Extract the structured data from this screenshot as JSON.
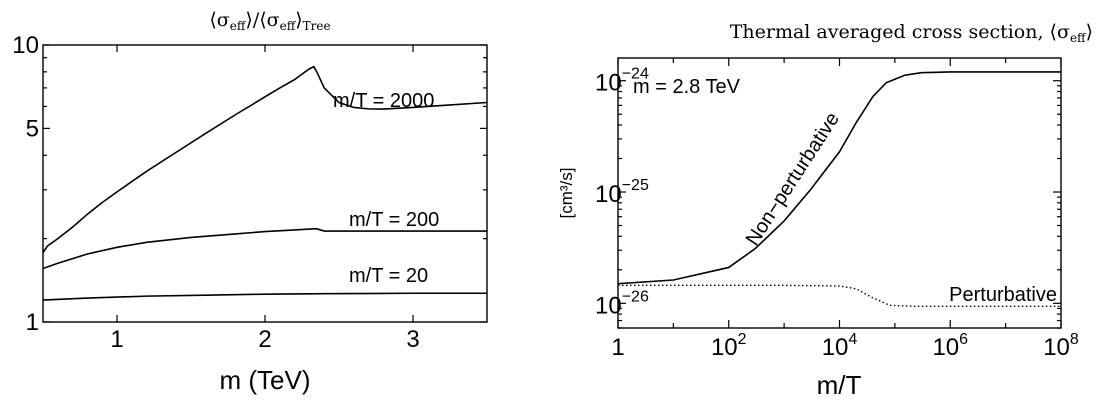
{
  "chart_data": [
    {
      "type": "line",
      "title": {
        "lhs": "⟨σ",
        "lhs_sub": "eff",
        "mid": "⟩/⟨σ",
        "mid_sub": "eff",
        "close": "⟩",
        "tail_sub": "Tree"
      },
      "xlabel": "m (TeV)",
      "ylabel": "",
      "xlim": [
        0.5,
        3.5
      ],
      "ylim": [
        1,
        10
      ],
      "yscale": "log",
      "x_ticks": [
        1,
        2,
        3
      ],
      "x_tick_labels": [
        "1",
        "2",
        "3"
      ],
      "y_ticks": [
        1,
        5,
        10
      ],
      "y_tick_labels": [
        "1",
        "5",
        "10"
      ],
      "series": [
        {
          "name": "m/T = 2000",
          "x": [
            0.5,
            0.53,
            0.6,
            0.7,
            0.8,
            0.9,
            1.0,
            1.2,
            1.4,
            1.6,
            1.8,
            2.0,
            2.1,
            2.2,
            2.25,
            2.3,
            2.33,
            2.35,
            2.4,
            2.5,
            2.6,
            2.7,
            2.8,
            3.0,
            3.2,
            3.5
          ],
          "values": [
            1.78,
            1.88,
            2.0,
            2.2,
            2.45,
            2.7,
            2.95,
            3.5,
            4.1,
            4.8,
            5.6,
            6.5,
            7.0,
            7.5,
            7.85,
            8.2,
            8.35,
            8.0,
            7.0,
            6.2,
            5.95,
            5.88,
            5.87,
            5.95,
            6.05,
            6.2
          ]
        },
        {
          "name": "m/T = 200",
          "x": [
            0.5,
            0.6,
            0.8,
            1.0,
            1.2,
            1.5,
            1.8,
            2.0,
            2.2,
            2.33,
            2.35,
            2.4,
            2.6,
            3.0,
            3.5
          ],
          "values": [
            1.56,
            1.63,
            1.76,
            1.86,
            1.94,
            2.02,
            2.08,
            2.12,
            2.15,
            2.17,
            2.17,
            2.13,
            2.13,
            2.13,
            2.13
          ]
        },
        {
          "name": "m/T = 20",
          "x": [
            0.5,
            0.8,
            1.2,
            1.6,
            2.0,
            2.4,
            3.0,
            3.5
          ],
          "values": [
            1.2,
            1.22,
            1.24,
            1.25,
            1.26,
            1.265,
            1.27,
            1.27
          ]
        }
      ]
    },
    {
      "type": "line",
      "title": {
        "lhs": "Thermal averaged cross section, ⟨σ",
        "lhs_sub": "eff",
        "close": "⟩"
      },
      "xlabel": "m/T",
      "ylabel": "[cm³/s]",
      "xscale": "log",
      "yscale": "log",
      "xlim": [
        1,
        100000000
      ],
      "ylim": [
        6e-27,
        1.6e-24
      ],
      "x_ticks": [
        1,
        100,
        10000,
        1000000,
        100000000
      ],
      "x_tick_labels": [
        {
          "base": "1",
          "exp": ""
        },
        {
          "base": "10",
          "exp": "2"
        },
        {
          "base": "10",
          "exp": "4"
        },
        {
          "base": "10",
          "exp": "6"
        },
        {
          "base": "10",
          "exp": "8"
        }
      ],
      "y_ticks": [
        1e-26,
        1e-25,
        1e-24
      ],
      "y_tick_labels": [
        {
          "base": "10",
          "exp": "−26"
        },
        {
          "base": "10",
          "exp": "−25"
        },
        {
          "base": "10",
          "exp": "−24"
        }
      ],
      "annotation": "m = 2.8 TeV",
      "series": [
        {
          "name": "Non−perturbative",
          "x": [
            1,
            10,
            100,
            300,
            1000,
            3000,
            10000,
            20000,
            40000,
            70000,
            150000,
            300000,
            1000000,
            10000000,
            100000000
          ],
          "values": [
            1.5e-26,
            1.62e-26,
            2.1e-26,
            3.1e-26,
            5.5e-26,
            1.05e-25,
            2.3e-25,
            4.2e-25,
            7.2e-25,
            9.6e-25,
            1.12e-24,
            1.18e-24,
            1.2e-24,
            1.2e-24,
            1.2e-24
          ]
        },
        {
          "name": "Perturbative",
          "style": "dotted",
          "x": [
            1,
            100,
            1000,
            10000,
            20000,
            40000,
            80000,
            200000,
            1000000,
            100000000
          ],
          "values": [
            1.45e-26,
            1.45e-26,
            1.45e-26,
            1.43e-26,
            1.35e-26,
            1.12e-26,
            9.6e-27,
            9.4e-27,
            9.4e-27,
            9.4e-27
          ]
        }
      ]
    }
  ]
}
